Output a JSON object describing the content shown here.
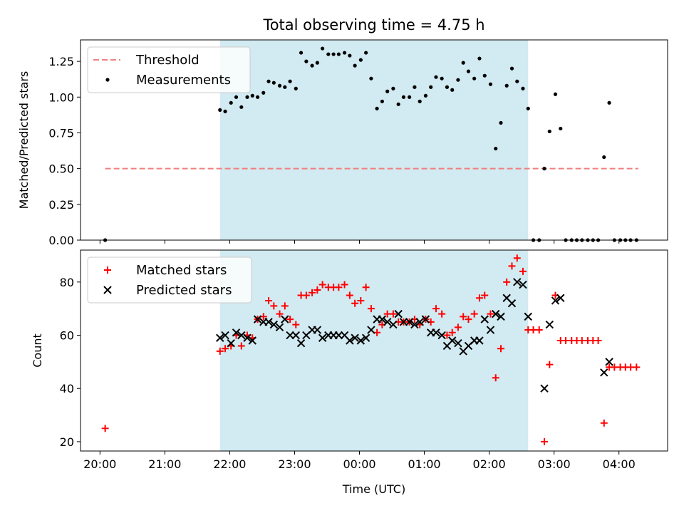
{
  "title": "Total observing time = 4.75 h",
  "xlabel": "Time (UTC)",
  "colors": {
    "shade": "#add8e6",
    "threshold": "#f08080",
    "matched": "#ff0000",
    "predicted": "#000000",
    "measure": "#000000"
  },
  "chart_data": [
    {
      "type": "scatter",
      "ylabel": "Matched/Predicted stars",
      "ylim": [
        0,
        1.4
      ],
      "yticks": [
        0.0,
        0.25,
        0.5,
        0.75,
        1.0,
        1.25
      ],
      "yticklabels": [
        "0.00",
        "0.25",
        "0.50",
        "0.75",
        "1.00",
        "1.25"
      ],
      "x_unit": "hours from 20:00 UTC",
      "shaded_span": [
        1.85,
        6.6
      ],
      "legend": {
        "position": "upper left",
        "entries": [
          "Threshold",
          "Measurements"
        ]
      },
      "threshold": {
        "name": "Threshold",
        "y": 0.5,
        "x_range": [
          0.08,
          8.3
        ],
        "style": "dashed"
      },
      "series": [
        {
          "name": "Measurements",
          "marker": "dot",
          "points": [
            [
              0.08,
              0.0
            ],
            [
              1.85,
              0.91
            ],
            [
              1.93,
              0.9
            ],
            [
              2.02,
              0.96
            ],
            [
              2.1,
              1.0
            ],
            [
              2.18,
              0.93
            ],
            [
              2.27,
              1.0
            ],
            [
              2.35,
              1.01
            ],
            [
              2.43,
              1.0
            ],
            [
              2.52,
              1.03
            ],
            [
              2.6,
              1.11
            ],
            [
              2.68,
              1.1
            ],
            [
              2.77,
              1.08
            ],
            [
              2.85,
              1.07
            ],
            [
              2.93,
              1.11
            ],
            [
              3.02,
              1.06
            ],
            [
              3.1,
              1.31
            ],
            [
              3.18,
              1.25
            ],
            [
              3.27,
              1.22
            ],
            [
              3.35,
              1.24
            ],
            [
              3.43,
              1.34
            ],
            [
              3.52,
              1.3
            ],
            [
              3.6,
              1.3
            ],
            [
              3.68,
              1.3
            ],
            [
              3.77,
              1.31
            ],
            [
              3.85,
              1.29
            ],
            [
              3.93,
              1.22
            ],
            [
              4.02,
              1.26
            ],
            [
              4.1,
              1.31
            ],
            [
              4.18,
              1.13
            ],
            [
              4.27,
              0.92
            ],
            [
              4.35,
              0.97
            ],
            [
              4.43,
              1.04
            ],
            [
              4.52,
              1.06
            ],
            [
              4.6,
              0.95
            ],
            [
              4.68,
              1.0
            ],
            [
              4.77,
              1.0
            ],
            [
              4.85,
              1.07
            ],
            [
              4.93,
              0.97
            ],
            [
              5.02,
              1.01
            ],
            [
              5.1,
              1.07
            ],
            [
              5.18,
              1.14
            ],
            [
              5.27,
              1.13
            ],
            [
              5.35,
              1.07
            ],
            [
              5.43,
              1.05
            ],
            [
              5.52,
              1.12
            ],
            [
              5.6,
              1.24
            ],
            [
              5.68,
              1.18
            ],
            [
              5.77,
              1.13
            ],
            [
              5.85,
              1.27
            ],
            [
              5.93,
              1.15
            ],
            [
              6.02,
              1.09
            ],
            [
              6.1,
              0.64
            ],
            [
              6.18,
              0.82
            ],
            [
              6.27,
              1.08
            ],
            [
              6.35,
              1.2
            ],
            [
              6.43,
              1.11
            ],
            [
              6.52,
              1.06
            ],
            [
              6.6,
              0.92
            ],
            [
              6.68,
              0.0
            ],
            [
              6.77,
              0.0
            ],
            [
              6.85,
              0.5
            ],
            [
              6.93,
              0.76
            ],
            [
              7.02,
              1.02
            ],
            [
              7.1,
              0.78
            ],
            [
              7.18,
              0.0
            ],
            [
              7.27,
              0.0
            ],
            [
              7.35,
              0.0
            ],
            [
              7.43,
              0.0
            ],
            [
              7.52,
              0.0
            ],
            [
              7.6,
              0.0
            ],
            [
              7.68,
              0.0
            ],
            [
              7.77,
              0.58
            ],
            [
              7.85,
              0.96
            ],
            [
              7.93,
              0.0
            ],
            [
              8.02,
              0.0
            ],
            [
              8.1,
              0.0
            ],
            [
              8.18,
              0.0
            ],
            [
              8.27,
              0.0
            ]
          ]
        }
      ]
    },
    {
      "type": "scatter",
      "ylabel": "Count",
      "ylim": [
        16.5,
        92
      ],
      "yticks": [
        20,
        40,
        60,
        80
      ],
      "yticklabels": [
        "20",
        "40",
        "60",
        "80"
      ],
      "x_unit": "hours from 20:00 UTC",
      "xlim": [
        -0.3,
        8.75
      ],
      "xticks": [
        0,
        1,
        2,
        3,
        4,
        5,
        6,
        7,
        8
      ],
      "xticklabels": [
        "20:00",
        "21:00",
        "22:00",
        "23:00",
        "00:00",
        "01:00",
        "02:00",
        "03:00",
        "04:00"
      ],
      "shaded_span": [
        1.85,
        6.6
      ],
      "legend": {
        "position": "upper left",
        "entries": [
          "Matched stars",
          "Predicted stars"
        ]
      },
      "series": [
        {
          "name": "Matched stars",
          "marker": "plus",
          "points": [
            [
              0.08,
              25
            ],
            [
              1.85,
              54
            ],
            [
              1.93,
              55
            ],
            [
              2.02,
              56
            ],
            [
              2.1,
              60
            ],
            [
              2.18,
              56
            ],
            [
              2.27,
              60
            ],
            [
              2.35,
              59
            ],
            [
              2.43,
              66
            ],
            [
              2.52,
              67
            ],
            [
              2.6,
              73
            ],
            [
              2.68,
              71
            ],
            [
              2.77,
              68
            ],
            [
              2.85,
              71
            ],
            [
              2.93,
              66
            ],
            [
              3.02,
              64
            ],
            [
              3.1,
              75
            ],
            [
              3.18,
              75
            ],
            [
              3.27,
              76
            ],
            [
              3.35,
              77
            ],
            [
              3.43,
              79
            ],
            [
              3.52,
              78
            ],
            [
              3.6,
              78
            ],
            [
              3.68,
              78
            ],
            [
              3.77,
              79
            ],
            [
              3.85,
              75
            ],
            [
              3.93,
              72
            ],
            [
              4.02,
              73
            ],
            [
              4.1,
              78
            ],
            [
              4.18,
              70
            ],
            [
              4.27,
              61
            ],
            [
              4.35,
              64
            ],
            [
              4.43,
              68
            ],
            [
              4.52,
              68
            ],
            [
              4.6,
              65
            ],
            [
              4.68,
              65
            ],
            [
              4.77,
              65
            ],
            [
              4.85,
              66
            ],
            [
              4.93,
              64
            ],
            [
              5.02,
              66
            ],
            [
              5.1,
              65
            ],
            [
              5.18,
              70
            ],
            [
              5.27,
              68
            ],
            [
              5.35,
              60
            ],
            [
              5.43,
              61
            ],
            [
              5.52,
              63
            ],
            [
              5.6,
              67
            ],
            [
              5.68,
              66
            ],
            [
              5.77,
              68
            ],
            [
              5.85,
              74
            ],
            [
              5.93,
              75
            ],
            [
              6.02,
              68
            ],
            [
              6.1,
              44
            ],
            [
              6.18,
              55
            ],
            [
              6.27,
              80
            ],
            [
              6.35,
              86
            ],
            [
              6.43,
              89
            ],
            [
              6.52,
              84
            ],
            [
              6.6,
              62
            ],
            [
              6.68,
              62
            ],
            [
              6.77,
              62
            ],
            [
              6.85,
              20
            ],
            [
              6.93,
              49
            ],
            [
              7.02,
              75
            ],
            [
              7.1,
              58
            ],
            [
              7.18,
              58
            ],
            [
              7.27,
              58
            ],
            [
              7.35,
              58
            ],
            [
              7.43,
              58
            ],
            [
              7.52,
              58
            ],
            [
              7.6,
              58
            ],
            [
              7.68,
              58
            ],
            [
              7.77,
              27
            ],
            [
              7.85,
              48
            ],
            [
              7.93,
              48
            ],
            [
              8.02,
              48
            ],
            [
              8.1,
              48
            ],
            [
              8.18,
              48
            ],
            [
              8.27,
              48
            ]
          ]
        },
        {
          "name": "Predicted stars",
          "marker": "x",
          "points": [
            [
              1.85,
              59
            ],
            [
              1.93,
              60
            ],
            [
              2.02,
              57
            ],
            [
              2.1,
              61
            ],
            [
              2.18,
              60
            ],
            [
              2.27,
              59
            ],
            [
              2.35,
              58
            ],
            [
              2.43,
              66
            ],
            [
              2.52,
              65
            ],
            [
              2.6,
              65
            ],
            [
              2.68,
              64
            ],
            [
              2.77,
              63
            ],
            [
              2.85,
              66
            ],
            [
              2.93,
              60
            ],
            [
              3.02,
              60
            ],
            [
              3.1,
              57
            ],
            [
              3.18,
              60
            ],
            [
              3.27,
              62
            ],
            [
              3.35,
              62
            ],
            [
              3.43,
              59
            ],
            [
              3.52,
              60
            ],
            [
              3.6,
              60
            ],
            [
              3.68,
              60
            ],
            [
              3.77,
              60
            ],
            [
              3.85,
              58
            ],
            [
              3.93,
              59
            ],
            [
              4.02,
              58
            ],
            [
              4.1,
              59
            ],
            [
              4.18,
              62
            ],
            [
              4.27,
              66
            ],
            [
              4.35,
              66
            ],
            [
              4.43,
              65
            ],
            [
              4.52,
              64
            ],
            [
              4.6,
              68
            ],
            [
              4.68,
              65
            ],
            [
              4.77,
              65
            ],
            [
              4.85,
              64
            ],
            [
              4.93,
              65
            ],
            [
              5.02,
              66
            ],
            [
              5.1,
              61
            ],
            [
              5.18,
              61
            ],
            [
              5.27,
              60
            ],
            [
              5.35,
              56
            ],
            [
              5.43,
              58
            ],
            [
              5.52,
              57
            ],
            [
              5.6,
              54
            ],
            [
              5.68,
              56
            ],
            [
              5.77,
              58
            ],
            [
              5.85,
              58
            ],
            [
              5.93,
              66
            ],
            [
              6.02,
              62
            ],
            [
              6.1,
              68
            ],
            [
              6.18,
              67
            ],
            [
              6.27,
              74
            ],
            [
              6.35,
              72
            ],
            [
              6.43,
              80
            ],
            [
              6.52,
              79
            ],
            [
              6.6,
              67
            ],
            [
              6.85,
              40
            ],
            [
              6.93,
              64
            ],
            [
              7.02,
              73
            ],
            [
              7.1,
              74
            ],
            [
              7.77,
              46
            ],
            [
              7.85,
              50
            ]
          ]
        }
      ]
    }
  ]
}
